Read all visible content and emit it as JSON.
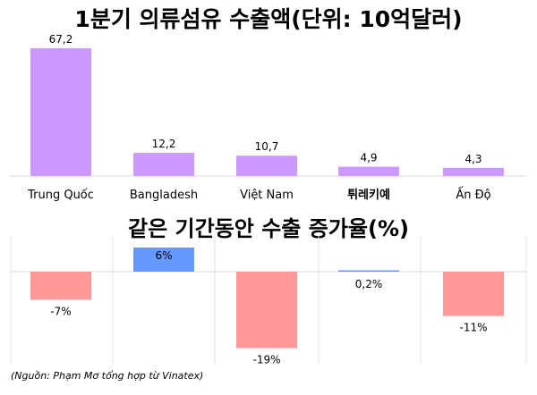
{
  "chart_data": [
    {
      "type": "bar",
      "title": "1분기 의류섬유 수출액(단위: 10억달러)",
      "categories": [
        "Trung Quốc",
        "Bangladesh",
        "Việt Nam",
        "튀레키예",
        "Ấn Độ"
      ],
      "values": [
        67.2,
        12.2,
        10.7,
        4.9,
        4.3
      ],
      "value_labels": [
        "67,2",
        "12,2",
        "10,7",
        "4,9",
        "4,3"
      ],
      "ylim": [
        0,
        70
      ],
      "color": "#cc99ff",
      "grid": false
    },
    {
      "type": "bar",
      "title": "같은 기간동안 수출 증가율(%)",
      "values": [
        -7,
        6,
        -19,
        0.2,
        -11
      ],
      "value_labels": [
        "-7%",
        "6%",
        "-19%",
        "0,2%",
        "-11%"
      ],
      "ylim": [
        -22,
        8
      ],
      "colors": {
        "positive": "#6699ff",
        "negative": "#ff9999"
      },
      "grid": true
    }
  ],
  "source": "(Nguồn: Phạm Mơ tổng hợp từ Vinatex)"
}
